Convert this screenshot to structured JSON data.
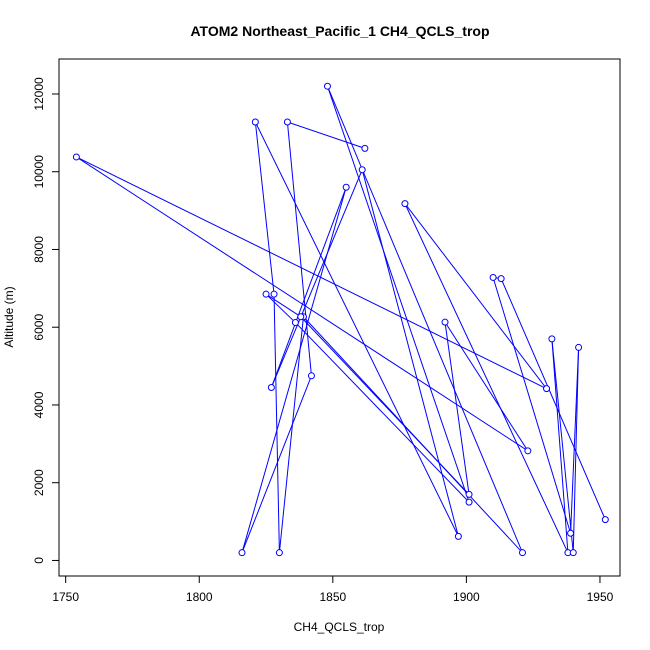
{
  "chart_data": {
    "type": "line",
    "title": "ATOM2 Northeast_Pacific_1 CH4_QCLS_trop",
    "xlabel": "CH4_QCLS_trop",
    "ylabel": "Altitude (m)",
    "xlim": [
      1747.5,
      1957.5
    ],
    "ylim": [
      -400,
      12900
    ],
    "xticks": [
      1750,
      1800,
      1850,
      1900,
      1950
    ],
    "yticks": [
      0,
      2000,
      4000,
      6000,
      8000,
      10000,
      12000
    ],
    "grid": false,
    "colors": {
      "series": "#0000ff",
      "axes": "#000000"
    },
    "series": [
      {
        "x": [
          1862,
          1833,
          1842,
          1816,
          1855,
          1827,
          1861,
          1897,
          1821,
          1828,
          1830,
          1839,
          1921,
          1848,
          1901,
          1836,
          1825,
          1838,
          1901,
          1892,
          1923,
          1754,
          1930,
          1877,
          1938,
          1932,
          1940,
          1942,
          1939,
          1910,
          1913,
          1952
        ],
        "y": [
          10600,
          11280,
          4750,
          200,
          9600,
          4450,
          10050,
          620,
          11280,
          6850,
          200,
          6270,
          200,
          12200,
          1500,
          6120,
          6850,
          6270,
          1700,
          6130,
          2820,
          10380,
          4420,
          9180,
          200,
          5700,
          200,
          5480,
          700,
          7280,
          7250,
          1050
        ]
      }
    ]
  }
}
